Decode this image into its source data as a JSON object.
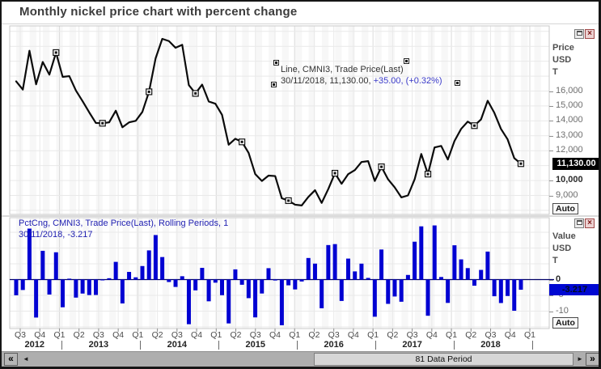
{
  "window": {
    "title": "Monthly nickel price chart with percent change"
  },
  "icons": {
    "close_glyph": "×"
  },
  "colors": {
    "bar": "#0000d2",
    "line": "#0b0b0b",
    "grid": "#e9e9e9",
    "grid_year": "#dadada",
    "band": "#f7f7f7",
    "plot_border": "#c9c9c9",
    "zero_line": "#000066"
  },
  "price_panel": {
    "legend_line1": "Line, CMNI3, Trade Price(Last)",
    "legend_line2_dark": "30/11/2018, 11,130.00,",
    "legend_line2_blue": "+35.00, (+0.32%)",
    "axis_unit_lines": [
      "Price",
      "USD",
      "T"
    ],
    "ticks": [
      {
        "label": "16,000",
        "value": 16000,
        "bold": false
      },
      {
        "label": "15,000",
        "value": 15000,
        "bold": false
      },
      {
        "label": "14,000",
        "value": 14000,
        "bold": false
      },
      {
        "label": "13,000",
        "value": 13000,
        "bold": false
      },
      {
        "label": "12,000",
        "value": 12000,
        "bold": false
      },
      {
        "label": "10,000",
        "value": 10000,
        "bold": true
      },
      {
        "label": "9,000",
        "value": 9000,
        "bold": false
      }
    ],
    "last_price_label": "11,130.00",
    "auto_label": "Auto"
  },
  "pct_panel": {
    "legend_line1": "PctCng, CMNI3, Trade Price(Last), Rolling Periods, 1",
    "legend_line2": "30/11/2018, -3.217",
    "axis_unit_lines": [
      "Value",
      "USD",
      "T"
    ],
    "ticks": [
      {
        "label": "0",
        "value": 0,
        "bold": true
      },
      {
        "label": "-5",
        "value": -5,
        "bold": false
      },
      {
        "label": "-10",
        "value": -10,
        "bold": false
      }
    ],
    "last_value_label": "-3.217",
    "auto_label": "Auto"
  },
  "xaxis": {
    "quarters": [
      "Q3",
      "Q4",
      "Q1",
      "Q2",
      "Q3",
      "Q4",
      "Q1",
      "Q2",
      "Q3",
      "Q4",
      "Q1",
      "Q2",
      "Q3",
      "Q4",
      "Q1",
      "Q2",
      "Q3",
      "Q4",
      "Q1",
      "Q2",
      "Q3",
      "Q4",
      "Q1",
      "Q2",
      "Q3",
      "Q4",
      "Q1"
    ],
    "years": [
      "2012",
      "2013",
      "2014",
      "2015",
      "2016",
      "2017",
      "2018"
    ]
  },
  "scrollbar": {
    "label": "81 Data Period",
    "fast_left_glyph": "«",
    "left_glyph": "◄",
    "right_glyph": "►",
    "fast_right_glyph": "»"
  },
  "chart_data": [
    {
      "type": "line",
      "name": "Line, CMNI3, Trade Price(Last)",
      "unit": "USD/T",
      "last_date": "30/11/2018",
      "last_value": 11130.0,
      "last_change": "+35.00",
      "last_change_pct": "+0.32%",
      "ylabel": "Price USD T",
      "y_ticks": [
        16000,
        15000,
        14000,
        13000,
        12000,
        10000,
        9000
      ],
      "y_visible_range": [
        7800,
        20300
      ],
      "marker_indices": [
        6,
        13,
        20,
        27,
        34,
        41,
        48,
        55,
        62,
        69,
        76
      ],
      "months": [
        "2012-07",
        "2012-08",
        "2012-09",
        "2012-10",
        "2012-11",
        "2012-12",
        "2013-01",
        "2013-02",
        "2013-03",
        "2013-04",
        "2013-05",
        "2013-06",
        "2013-07",
        "2013-08",
        "2013-09",
        "2013-10",
        "2013-11",
        "2013-12",
        "2014-01",
        "2014-02",
        "2014-03",
        "2014-04",
        "2014-05",
        "2014-06",
        "2014-07",
        "2014-08",
        "2014-09",
        "2014-10",
        "2014-11",
        "2014-12",
        "2015-01",
        "2015-02",
        "2015-03",
        "2015-04",
        "2015-05",
        "2015-06",
        "2015-07",
        "2015-08",
        "2015-09",
        "2015-10",
        "2015-11",
        "2015-12",
        "2016-01",
        "2016-02",
        "2016-03",
        "2016-04",
        "2016-05",
        "2016-06",
        "2016-07",
        "2016-08",
        "2016-09",
        "2016-10",
        "2016-11",
        "2016-12",
        "2017-01",
        "2017-02",
        "2017-03",
        "2017-04",
        "2017-05",
        "2017-06",
        "2017-07",
        "2017-08",
        "2017-09",
        "2017-10",
        "2017-11",
        "2017-12",
        "2018-01",
        "2018-02",
        "2018-03",
        "2018-04",
        "2018-05",
        "2018-06",
        "2018-07",
        "2018-08",
        "2018-09",
        "2018-10",
        "2018-11"
      ],
      "values": [
        16650,
        16100,
        18700,
        16450,
        17950,
        17100,
        18580,
        16950,
        17000,
        16030,
        15320,
        14570,
        13860,
        13840,
        13900,
        14680,
        13570,
        13900,
        14000,
        14600,
        15950,
        18200,
        19500,
        19350,
        18900,
        19100,
        16400,
        15840,
        16430,
        15300,
        15150,
        14400,
        12400,
        12800,
        12590,
        11850,
        10430,
        9970,
        10330,
        10300,
        8810,
        8650,
        8380,
        8330,
        8900,
        9350,
        8500,
        9430,
        10490,
        9780,
        10430,
        10700,
        11240,
        11300,
        9970,
        10920,
        10080,
        9540,
        8870,
        9000,
        10080,
        11780,
        10430,
        12220,
        12320,
        11410,
        12650,
        13460,
        13950,
        13680,
        14100,
        15350,
        14540,
        13460,
        12760,
        11500,
        11130
      ]
    },
    {
      "type": "bar",
      "name": "PctCng, CMNI3, Trade Price(Last), Rolling Periods, 1",
      "unit": "Value USD T (%)",
      "last_date": "30/11/2018",
      "last_value": -3.217,
      "y_ticks": [
        0,
        -5,
        -10
      ],
      "y_visible_range": [
        -15.5,
        19.3
      ],
      "months_ref": 0,
      "values": [
        -4.97,
        -3.3,
        16.15,
        -12.03,
        9.12,
        -4.74,
        8.65,
        -8.77,
        0.29,
        -5.71,
        -4.43,
        -4.9,
        -4.87,
        -0.14,
        0.43,
        5.61,
        -7.56,
        2.43,
        0.72,
        4.29,
        9.25,
        14.11,
        7.14,
        -0.77,
        -2.33,
        1.06,
        -14.14,
        -3.41,
        3.72,
        -6.88,
        -0.98,
        -4.95,
        -13.89,
        3.23,
        -1.64,
        -5.88,
        -11.98,
        -4.41,
        3.61,
        -0.29,
        -14.47,
        -1.82,
        -3.12,
        -0.6,
        6.84,
        5.06,
        -9.09,
        10.94,
        11.24,
        -6.77,
        6.65,
        2.59,
        5.05,
        0.53,
        -11.77,
        9.53,
        -7.69,
        -5.36,
        -7.02,
        1.47,
        12.0,
        16.87,
        -11.46,
        17.16,
        0.82,
        -7.39,
        10.87,
        6.4,
        3.64,
        -1.94,
        3.07,
        8.87,
        -5.28,
        -7.43,
        -5.2,
        -9.87,
        -3.217
      ]
    }
  ]
}
